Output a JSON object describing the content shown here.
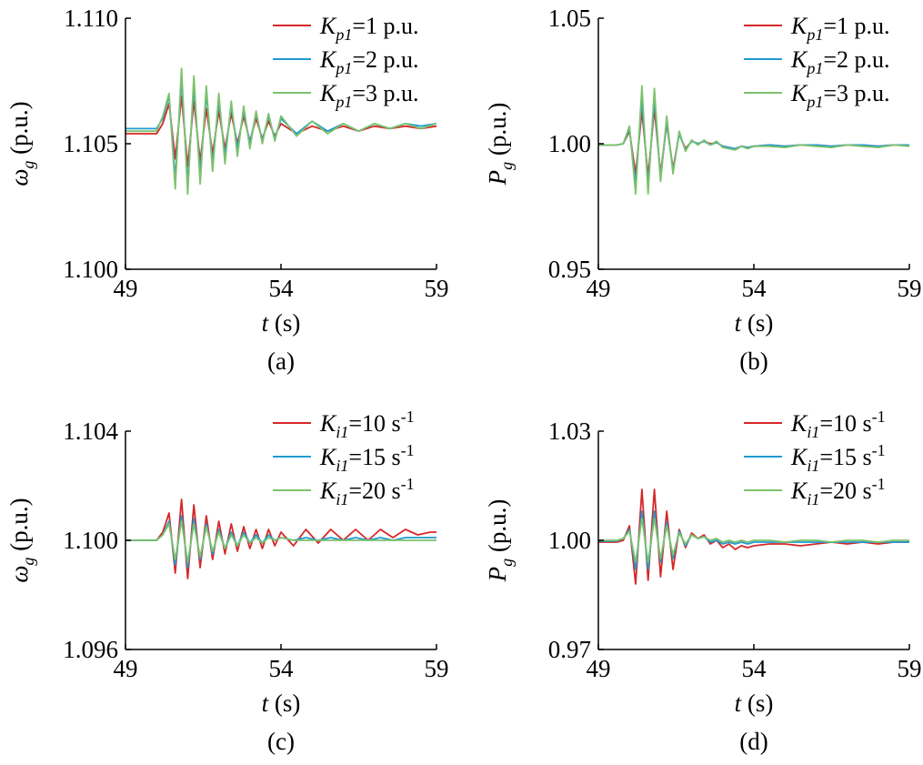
{
  "colors": {
    "red": "#d62728",
    "blue": "#1f9bd1",
    "green": "#7cc26c",
    "axis": "#000000"
  },
  "chart_data": [
    {
      "type": "line",
      "panel_label": "(a)",
      "xlabel": {
        "var": "t",
        "unit": " (s)"
      },
      "ylabel": {
        "var": "ω",
        "sub": "g",
        "unit": " (p.u.)"
      },
      "xlim": [
        49,
        59
      ],
      "ylim": [
        1.1,
        1.11
      ],
      "xticks": [
        "49",
        "54",
        "59"
      ],
      "yticks": [
        "1.100",
        "1.105",
        "1.110"
      ],
      "legend_position": "top-right",
      "series": [
        {
          "name": {
            "var": "K",
            "sub": "p1",
            "rest": "=1 p.u."
          },
          "color": "red",
          "x": [
            49,
            50,
            50.2,
            50.4,
            50.6,
            50.8,
            51.0,
            51.2,
            51.4,
            51.6,
            51.8,
            52.0,
            52.2,
            52.4,
            52.6,
            52.8,
            53.0,
            53.2,
            53.4,
            53.6,
            53.8,
            54.0,
            54.5,
            55,
            55.5,
            56,
            56.5,
            57,
            57.5,
            58,
            58.5,
            59
          ],
          "y": [
            1.1054,
            1.1054,
            1.1058,
            1.1066,
            1.1044,
            1.1069,
            1.1041,
            1.1067,
            1.1043,
            1.1064,
            1.1046,
            1.1063,
            1.1048,
            1.1062,
            1.105,
            1.1061,
            1.1051,
            1.106,
            1.1052,
            1.1059,
            1.1053,
            1.1058,
            1.1054,
            1.1057,
            1.1055,
            1.1057,
            1.1055,
            1.1057,
            1.1056,
            1.1057,
            1.1056,
            1.1057
          ]
        },
        {
          "name": {
            "var": "K",
            "sub": "p1",
            "rest": "=2 p.u."
          },
          "color": "blue",
          "x": [
            49,
            50,
            50.2,
            50.4,
            50.6,
            50.8,
            51.0,
            51.2,
            51.4,
            51.6,
            51.8,
            52.0,
            52.2,
            52.4,
            52.6,
            52.8,
            53.0,
            53.2,
            53.4,
            53.6,
            53.8,
            54.0,
            54.5,
            55,
            55.5,
            56,
            56.5,
            57,
            57.5,
            58,
            58.5,
            59
          ],
          "y": [
            1.1056,
            1.1056,
            1.106,
            1.1069,
            1.1036,
            1.1076,
            1.1034,
            1.1073,
            1.1038,
            1.107,
            1.1042,
            1.1067,
            1.1045,
            1.1065,
            1.1048,
            1.1063,
            1.105,
            1.1062,
            1.1051,
            1.1061,
            1.1052,
            1.106,
            1.1054,
            1.1059,
            1.1055,
            1.1058,
            1.1055,
            1.1058,
            1.1056,
            1.1058,
            1.1057,
            1.1058
          ]
        },
        {
          "name": {
            "var": "K",
            "sub": "p1",
            "rest": "=3 p.u."
          },
          "color": "green",
          "x": [
            49,
            50,
            50.2,
            50.4,
            50.6,
            50.8,
            51.0,
            51.2,
            51.4,
            51.6,
            51.8,
            52.0,
            52.2,
            52.4,
            52.6,
            52.8,
            53.0,
            53.2,
            53.4,
            53.6,
            53.8,
            54.0,
            54.5,
            55,
            55.5,
            56,
            56.5,
            57,
            57.5,
            58,
            58.5,
            59
          ],
          "y": [
            1.1055,
            1.1055,
            1.1061,
            1.107,
            1.1032,
            1.108,
            1.103,
            1.1077,
            1.1034,
            1.1073,
            1.1039,
            1.107,
            1.1042,
            1.1067,
            1.1045,
            1.1065,
            1.1048,
            1.1063,
            1.105,
            1.1062,
            1.1051,
            1.1061,
            1.1053,
            1.1059,
            1.1054,
            1.1058,
            1.1055,
            1.1058,
            1.1056,
            1.1058,
            1.1056,
            1.1058
          ]
        }
      ]
    },
    {
      "type": "line",
      "panel_label": "(b)",
      "xlabel": {
        "var": "t",
        "unit": " (s)"
      },
      "ylabel": {
        "var": "P",
        "sub": "g",
        "unit": " (p.u.)"
      },
      "xlim": [
        49,
        59
      ],
      "ylim": [
        0.95,
        1.05
      ],
      "xticks": [
        "49",
        "54",
        "59"
      ],
      "yticks": [
        "0.95",
        "1.00",
        "1.05"
      ],
      "legend_position": "top-right",
      "series": [
        {
          "name": {
            "var": "K",
            "sub": "p1",
            "rest": "=1 p.u."
          },
          "color": "red",
          "x": [
            49,
            49.6,
            49.8,
            50.0,
            50.2,
            50.4,
            50.6,
            50.8,
            51.0,
            51.2,
            51.4,
            51.6,
            51.8,
            52.0,
            52.2,
            52.4,
            52.6,
            52.8,
            53.0,
            53.2,
            53.4,
            53.6,
            53.8,
            54.0,
            54.5,
            55,
            55.5,
            56,
            56.5,
            57,
            57.5,
            58,
            58.5,
            59
          ],
          "y": [
            0.9995,
            0.9995,
            1.0,
            1.005,
            0.988,
            1.013,
            0.987,
            1.014,
            0.988,
            1.008,
            0.99,
            1.004,
            0.998,
            1.001,
            1.0,
            1.001,
            1.0,
            1.0005,
            0.999,
            0.9985,
            0.998,
            0.999,
            0.9985,
            0.999,
            0.9995,
            0.999,
            0.9995,
            0.9995,
            0.999,
            0.9995,
            0.9995,
            0.999,
            0.9995,
            0.9995
          ]
        },
        {
          "name": {
            "var": "K",
            "sub": "p1",
            "rest": "=2 p.u."
          },
          "color": "blue",
          "x": [
            49,
            49.6,
            49.8,
            50.0,
            50.2,
            50.4,
            50.6,
            50.8,
            51.0,
            51.2,
            51.4,
            51.6,
            51.8,
            52.0,
            52.2,
            52.4,
            52.6,
            52.8,
            53.0,
            53.2,
            53.4,
            53.6,
            53.8,
            54.0,
            54.5,
            55,
            55.5,
            56,
            56.5,
            57,
            57.5,
            58,
            58.5,
            59
          ],
          "y": [
            0.9995,
            0.9995,
            1.0,
            1.006,
            0.984,
            1.018,
            0.983,
            1.018,
            0.986,
            1.009,
            0.989,
            1.004,
            0.9975,
            1.001,
            1.0,
            1.001,
            0.9995,
            1.0005,
            0.999,
            0.9985,
            0.998,
            0.999,
            0.9985,
            0.999,
            0.9995,
            0.999,
            0.9995,
            0.9995,
            0.999,
            0.9995,
            0.9995,
            0.999,
            0.9995,
            0.9995
          ]
        },
        {
          "name": {
            "var": "K",
            "sub": "p1",
            "rest": "=3 p.u."
          },
          "color": "green",
          "x": [
            49,
            49.6,
            49.8,
            50.0,
            50.2,
            50.4,
            50.6,
            50.8,
            51.0,
            51.2,
            51.4,
            51.6,
            51.8,
            52.0,
            52.2,
            52.4,
            52.6,
            52.8,
            53.0,
            53.2,
            53.4,
            53.6,
            53.8,
            54.0,
            54.5,
            55,
            55.5,
            56,
            56.5,
            57,
            57.5,
            58,
            58.5,
            59
          ],
          "y": [
            0.9995,
            0.9995,
            1.0,
            1.007,
            0.98,
            1.023,
            0.98,
            1.022,
            0.985,
            1.011,
            0.988,
            1.005,
            0.997,
            1.0015,
            0.9995,
            1.0015,
            0.9995,
            1.001,
            0.9985,
            0.998,
            0.9975,
            0.999,
            0.998,
            0.999,
            0.999,
            0.9985,
            0.9995,
            0.999,
            0.9985,
            0.9995,
            0.999,
            0.9985,
            0.9995,
            0.999
          ]
        }
      ]
    },
    {
      "type": "line",
      "panel_label": "(c)",
      "xlabel": {
        "var": "t",
        "unit": " (s)"
      },
      "ylabel": {
        "var": "ω",
        "sub": "g",
        "unit": " (p.u.)"
      },
      "xlim": [
        49,
        59
      ],
      "ylim": [
        1.096,
        1.104
      ],
      "xticks": [
        "49",
        "54",
        "59"
      ],
      "yticks": [
        "1.096",
        "1.100",
        "1.104"
      ],
      "legend_position": "top-right",
      "series": [
        {
          "name": {
            "var": "K",
            "sub": "i1",
            "rest": "=10 s",
            "sup": "-1"
          },
          "color": "red",
          "x": [
            49,
            50,
            50.2,
            50.4,
            50.6,
            50.8,
            51.0,
            51.2,
            51.4,
            51.6,
            51.8,
            52.0,
            52.2,
            52.4,
            52.6,
            52.8,
            53.0,
            53.2,
            53.4,
            53.6,
            53.8,
            54.0,
            54.4,
            54.8,
            55.2,
            55.6,
            56.0,
            56.4,
            56.8,
            57.2,
            57.6,
            58.0,
            58.4,
            58.8,
            59
          ],
          "y": [
            1.1,
            1.1,
            1.1003,
            1.101,
            1.0988,
            1.1015,
            1.0986,
            1.1013,
            1.099,
            1.1009,
            1.0993,
            1.1007,
            1.0995,
            1.1006,
            1.0996,
            1.1005,
            1.0997,
            1.1004,
            1.0997,
            1.1004,
            1.0998,
            1.1003,
            1.0998,
            1.1004,
            1.0999,
            1.1004,
            1.1,
            1.1004,
            1.1,
            1.1004,
            1.1001,
            1.1004,
            1.1002,
            1.1003,
            1.1003
          ]
        },
        {
          "name": {
            "var": "K",
            "sub": "i1",
            "rest": "=15 s",
            "sup": "-1"
          },
          "color": "blue",
          "x": [
            49,
            50,
            50.2,
            50.4,
            50.6,
            50.8,
            51.0,
            51.2,
            51.4,
            51.6,
            51.8,
            52.0,
            52.2,
            52.4,
            52.6,
            52.8,
            53.0,
            53.2,
            53.4,
            53.6,
            53.8,
            54.0,
            54.4,
            54.8,
            55.2,
            55.6,
            56.0,
            56.4,
            56.8,
            57.2,
            57.6,
            58.0,
            58.4,
            58.8,
            59
          ],
          "y": [
            1.1,
            1.1,
            1.1002,
            1.1007,
            1.0991,
            1.1009,
            1.099,
            1.1008,
            1.0993,
            1.1006,
            1.0995,
            1.1004,
            1.0997,
            1.1003,
            1.0998,
            1.1003,
            1.0999,
            1.1002,
            1.0999,
            1.1002,
            1.1,
            1.1001,
            1.1,
            1.1001,
            1.1,
            1.1001,
            1.1,
            1.1001,
            1.1,
            1.1001,
            1.1,
            1.1001,
            1.1001,
            1.1001,
            1.1001
          ]
        },
        {
          "name": {
            "var": "K",
            "sub": "i1",
            "rest": "=20 s",
            "sup": "-1"
          },
          "color": "green",
          "x": [
            49,
            50,
            50.2,
            50.4,
            50.6,
            50.8,
            51.0,
            51.2,
            51.4,
            51.6,
            51.8,
            52.0,
            52.2,
            52.4,
            52.6,
            52.8,
            53.0,
            53.2,
            53.4,
            53.6,
            53.8,
            54.0,
            54.4,
            54.8,
            55.2,
            55.6,
            56.0,
            56.4,
            56.8,
            57.2,
            57.6,
            58.0,
            58.4,
            58.8,
            59
          ],
          "y": [
            1.1,
            1.1,
            1.1002,
            1.1006,
            1.0993,
            1.1007,
            1.0992,
            1.1006,
            1.0994,
            1.1005,
            1.0996,
            1.1003,
            1.0997,
            1.1002,
            1.0998,
            1.1002,
            1.0999,
            1.1001,
            1.0999,
            1.1001,
            1.1,
            1.1001,
            1.1,
            1.1,
            1.1,
            1.1,
            1.1,
            1.1,
            1.1,
            1.1,
            1.1,
            1.1,
            1.1,
            1.1,
            1.1
          ]
        }
      ]
    },
    {
      "type": "line",
      "panel_label": "(d)",
      "xlabel": {
        "var": "t",
        "unit": " (s)"
      },
      "ylabel": {
        "var": "P",
        "sub": "g",
        "unit": " (p.u.)"
      },
      "xlim": [
        49,
        59
      ],
      "ylim": [
        0.97,
        1.03
      ],
      "xticks": [
        "49",
        "54",
        "59"
      ],
      "yticks": [
        "0.97",
        "1.00",
        "1.03"
      ],
      "legend_position": "top-right",
      "series": [
        {
          "name": {
            "var": "K",
            "sub": "i1",
            "rest": "=10 s",
            "sup": "-1"
          },
          "color": "red",
          "x": [
            49,
            49.6,
            49.8,
            50.0,
            50.2,
            50.4,
            50.6,
            50.8,
            51.0,
            51.2,
            51.4,
            51.6,
            51.8,
            52.0,
            52.2,
            52.4,
            52.6,
            52.8,
            53.0,
            53.2,
            53.4,
            53.6,
            53.8,
            54.0,
            54.5,
            55,
            55.5,
            56,
            56.5,
            57,
            57.5,
            58,
            58.5,
            59
          ],
          "y": [
            0.9995,
            0.9995,
            1.0,
            1.004,
            0.988,
            1.014,
            0.989,
            1.014,
            0.99,
            1.008,
            0.992,
            1.003,
            0.998,
            1.002,
            1.0005,
            1.0015,
            0.999,
            1.0,
            0.998,
            0.999,
            0.9975,
            0.9985,
            0.998,
            0.9985,
            0.999,
            0.999,
            0.9985,
            0.999,
            0.9995,
            0.999,
            0.9995,
            0.999,
            0.9995,
            0.9995
          ]
        },
        {
          "name": {
            "var": "K",
            "sub": "i1",
            "rest": "=15 s",
            "sup": "-1"
          },
          "color": "blue",
          "x": [
            49,
            49.6,
            49.8,
            50.0,
            50.2,
            50.4,
            50.6,
            50.8,
            51.0,
            51.2,
            51.4,
            51.6,
            51.8,
            52.0,
            52.2,
            52.4,
            52.6,
            52.8,
            53.0,
            53.2,
            53.4,
            53.6,
            53.8,
            54.0,
            54.5,
            55,
            55.5,
            56,
            56.5,
            57,
            57.5,
            58,
            58.5,
            59
          ],
          "y": [
            0.9998,
            0.9998,
            1.0005,
            1.003,
            0.992,
            1.008,
            0.992,
            1.008,
            0.994,
            1.005,
            0.995,
            1.0025,
            0.9985,
            1.0015,
            1.0005,
            1.001,
            0.9995,
            1.0,
            0.999,
            0.9995,
            0.999,
            0.9995,
            0.999,
            0.9995,
            0.9995,
            0.9995,
            0.9995,
            0.9995,
            0.9995,
            0.9995,
            0.9995,
            0.9995,
            0.9995,
            0.9995
          ]
        },
        {
          "name": {
            "var": "K",
            "sub": "i1",
            "rest": "=20 s",
            "sup": "-1"
          },
          "color": "green",
          "x": [
            49,
            49.6,
            49.8,
            50.0,
            50.2,
            50.4,
            50.6,
            50.8,
            51.0,
            51.2,
            51.4,
            51.6,
            51.8,
            52.0,
            52.2,
            52.4,
            52.6,
            52.8,
            53.0,
            53.2,
            53.4,
            53.6,
            53.8,
            54.0,
            54.5,
            55,
            55.5,
            56,
            56.5,
            57,
            57.5,
            58,
            58.5,
            59
          ],
          "y": [
            1.0,
            1.0,
            1.0005,
            1.0025,
            0.994,
            1.006,
            0.994,
            1.006,
            0.995,
            1.004,
            0.996,
            1.002,
            0.999,
            1.0015,
            1.0005,
            1.001,
            1.0,
            1.0005,
            0.9995,
            1.0,
            0.9995,
            1.0,
            0.9995,
            1.0,
            1.0,
            0.9995,
            1.0,
            1.0,
            0.9995,
            1.0,
            1.0,
            0.9995,
            1.0,
            1.0
          ]
        }
      ]
    }
  ]
}
